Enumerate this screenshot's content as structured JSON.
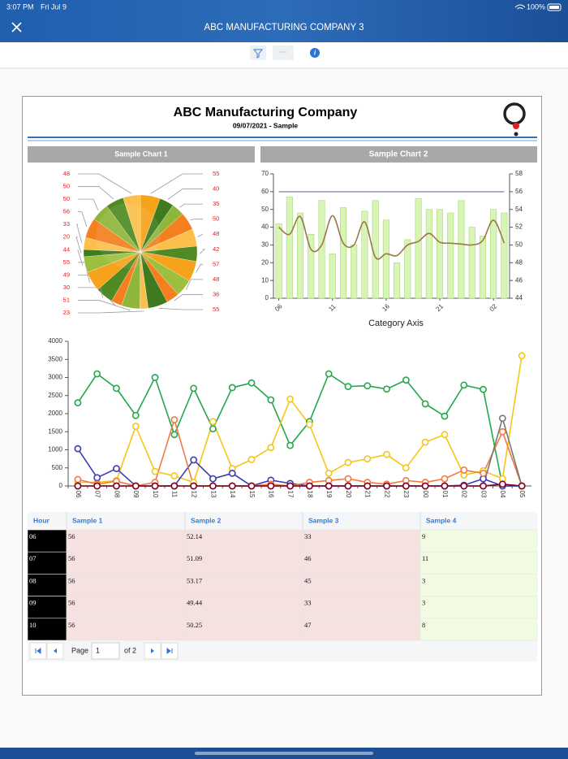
{
  "status_bar": {
    "time": "3:07 PM",
    "date": "Fri Jul 9",
    "battery": "100%"
  },
  "nav": {
    "title": "ABC MANUFACTURING COMPANY 3"
  },
  "toolbar": {
    "more": "···"
  },
  "report": {
    "title": "ABC Manufacturing Company",
    "subtitle": "09/07/2021 - Sample"
  },
  "chart_data": [
    {
      "type": "pie",
      "title": "Sample Chart 1",
      "values": [
        55,
        40,
        35,
        50,
        48,
        42,
        57,
        48,
        36,
        55,
        23,
        51,
        30,
        49,
        55,
        44,
        20,
        33,
        56,
        50,
        50,
        48
      ],
      "colors": [
        "#f7a21b",
        "#3f7a1e",
        "#8fb53a",
        "#f57f1f",
        "#fbbf4a",
        "#4f8a22",
        "#f7a21b",
        "#9cc03e",
        "#f57f1f",
        "#3f7a1e",
        "#fbbf4a",
        "#8fb53a",
        "#f57f1f",
        "#4f8a22",
        "#f7a21b",
        "#9cc03e",
        "#3f7a1e",
        "#fbbf4a",
        "#f57f1f",
        "#8fb53a",
        "#4f8a22",
        "#fbbf4a"
      ],
      "label_color": "#e02020"
    },
    {
      "type": "combo",
      "title": "Sample Chart 2",
      "xlabel": "Category Axis",
      "categories": [
        "06",
        null,
        null,
        null,
        null,
        "11",
        null,
        null,
        null,
        null,
        "16",
        null,
        null,
        null,
        null,
        "21",
        null,
        null,
        null,
        null,
        "02",
        null
      ],
      "series": [
        {
          "type": "bar",
          "color": "#d9f5b5",
          "values": [
            42,
            57,
            48,
            36,
            55,
            25,
            51,
            30,
            49,
            55,
            44,
            20,
            33,
            56,
            50,
            50,
            48,
            55,
            40,
            35,
            50,
            48
          ]
        },
        {
          "type": "line",
          "axis": "y2",
          "color": "#9a7848",
          "values": [
            52,
            51.2,
            53.2,
            49.5,
            50,
            53.3,
            50.2,
            50,
            52.6,
            48.6,
            49,
            48.8,
            50,
            50.4,
            51.3,
            50.3,
            50.2,
            50.1,
            50,
            50.5,
            52.8,
            50.2
          ]
        }
      ],
      "hline": {
        "value": 60,
        "color": "#a58cc4"
      },
      "ylim": [
        0,
        70
      ],
      "yticks": [
        0,
        10,
        20,
        30,
        40,
        50,
        60,
        70
      ],
      "y2lim": [
        44,
        58
      ],
      "y2ticks": [
        44,
        46,
        48,
        50,
        52,
        54,
        56,
        58
      ]
    },
    {
      "type": "line",
      "categories": [
        "06",
        "07",
        "08",
        "09",
        "10",
        "11",
        "12",
        "13",
        "14",
        "15",
        "16",
        "17",
        "18",
        "19",
        "20",
        "21",
        "22",
        "23",
        "00",
        "01",
        "02",
        "03",
        "04",
        "05"
      ],
      "series": [
        {
          "color": "#22a84a",
          "values": [
            2300,
            3100,
            2700,
            1950,
            3000,
            1420,
            2700,
            1580,
            2720,
            2850,
            2380,
            1120,
            1780,
            3100,
            2750,
            2770,
            2680,
            2930,
            2270,
            1930,
            2790,
            2670,
            0,
            0
          ]
        },
        {
          "color": "#f5c518",
          "values": [
            100,
            100,
            150,
            1650,
            400,
            280,
            100,
            1780,
            480,
            730,
            1060,
            2400,
            1700,
            350,
            650,
            750,
            870,
            500,
            1210,
            1420,
            300,
            420,
            200,
            3600
          ]
        },
        {
          "color": "#3b3bb5",
          "values": [
            1030,
            230,
            480,
            0,
            0,
            0,
            720,
            200,
            350,
            0,
            160,
            70,
            0,
            0,
            0,
            0,
            0,
            0,
            0,
            0,
            20,
            200,
            0,
            0
          ]
        },
        {
          "color": "#f07b3f",
          "values": [
            180,
            50,
            130,
            0,
            100,
            1830,
            0,
            0,
            0,
            0,
            50,
            0,
            100,
            150,
            200,
            100,
            50,
            150,
            100,
            200,
            440,
            350,
            1500,
            0
          ]
        },
        {
          "color": "#777777",
          "values": [
            0,
            0,
            0,
            0,
            0,
            0,
            0,
            0,
            0,
            0,
            0,
            0,
            0,
            0,
            0,
            0,
            0,
            0,
            0,
            0,
            0,
            0,
            1870,
            0
          ]
        },
        {
          "color": "#800020",
          "values": [
            0,
            0,
            0,
            0,
            0,
            0,
            0,
            0,
            0,
            0,
            0,
            0,
            0,
            0,
            0,
            0,
            0,
            0,
            0,
            0,
            0,
            0,
            50,
            0
          ]
        }
      ],
      "ylim": [
        0,
        4000
      ],
      "yticks": [
        0,
        500,
        1000,
        1500,
        2000,
        2500,
        3000,
        3500,
        4000
      ]
    }
  ],
  "table": {
    "columns": [
      "Hour",
      "Sample 1",
      "Sample 2",
      "Sample 3",
      "Sample 4"
    ],
    "rows": [
      [
        "06",
        56,
        52.14,
        33,
        9
      ],
      [
        "07",
        56,
        51.09,
        46,
        11
      ],
      [
        "08",
        56,
        53.17,
        45,
        3
      ],
      [
        "09",
        56,
        49.44,
        33,
        3
      ],
      [
        "10",
        56,
        50.25,
        47,
        8
      ]
    ]
  },
  "pager": {
    "label": "Page",
    "page": "1",
    "of": "of 2"
  }
}
